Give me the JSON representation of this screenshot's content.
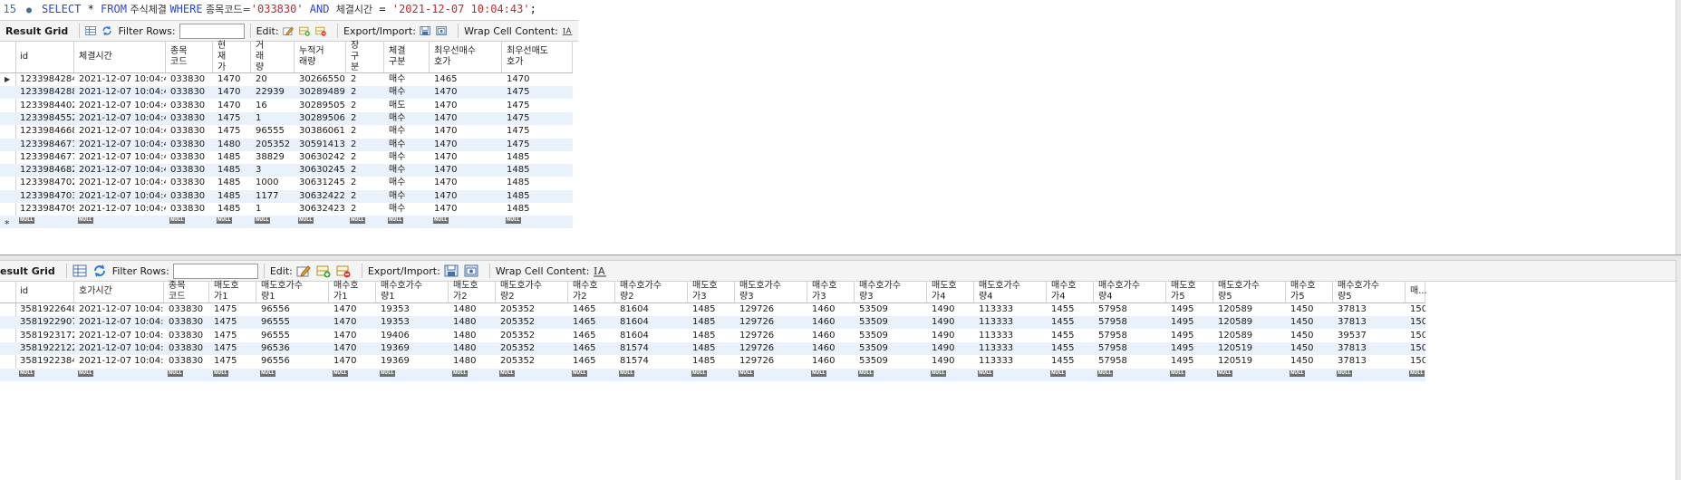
{
  "sql": {
    "line_number": "15",
    "marker": "●",
    "parts": [
      {
        "t": "SELECT",
        "c": "kw"
      },
      {
        "t": " * ",
        "c": ""
      },
      {
        "t": "FROM",
        "c": "kw"
      },
      {
        "t": " 주식체결 ",
        "c": "ko"
      },
      {
        "t": "WHERE",
        "c": "kw"
      },
      {
        "t": " 종목코드=",
        "c": "ko"
      },
      {
        "t": "'033830'",
        "c": "str"
      },
      {
        "t": " AND ",
        "c": "kw"
      },
      {
        "t": "체결시간",
        "c": "ko"
      },
      {
        "t": " = ",
        "c": ""
      },
      {
        "t": "'2021-12-07 10:04:43'",
        "c": "str"
      },
      {
        "t": ";",
        "c": ""
      }
    ]
  },
  "toolbar1": {
    "title": "Result Grid",
    "filter_label": "Filter Rows:",
    "edit_label": "Edit:",
    "export_label": "Export/Import:",
    "wrap_label": "Wrap Cell Content:"
  },
  "toolbar2": {
    "title": "esult Grid",
    "filter_label": "Filter Rows:",
    "edit_label": "Edit:",
    "export_label": "Export/Import:",
    "wrap_label": "Wrap Cell Content:"
  },
  "null_text": "NULL",
  "new_row_marker": "*",
  "current_row_marker": "▶",
  "grid1": {
    "columns": [
      "id",
      "체결시간",
      "종목\n코드",
      "현\n재\n가",
      "거\n래\n량",
      "누적거\n래량",
      "장\n구\n분",
      "체결\n구분",
      "최우선매수\n호가",
      "최우선매도\n호가"
    ],
    "rows": [
      [
        "1233984284",
        "2021-12-07 10:04:43",
        "033830",
        "1470",
        "20",
        "30266550",
        "2",
        "매수",
        "1465",
        "1470"
      ],
      [
        "1233984288",
        "2021-12-07 10:04:43",
        "033830",
        "1470",
        "22939",
        "30289489",
        "2",
        "매수",
        "1470",
        "1475"
      ],
      [
        "1233984402",
        "2021-12-07 10:04:43",
        "033830",
        "1470",
        "16",
        "30289505",
        "2",
        "매도",
        "1470",
        "1475"
      ],
      [
        "1233984552",
        "2021-12-07 10:04:43",
        "033830",
        "1475",
        "1",
        "30289506",
        "2",
        "매수",
        "1470",
        "1475"
      ],
      [
        "1233984668",
        "2021-12-07 10:04:43",
        "033830",
        "1475",
        "96555",
        "30386061",
        "2",
        "매수",
        "1470",
        "1475"
      ],
      [
        "1233984671",
        "2021-12-07 10:04:43",
        "033830",
        "1480",
        "205352",
        "30591413",
        "2",
        "매수",
        "1470",
        "1475"
      ],
      [
        "1233984677",
        "2021-12-07 10:04:43",
        "033830",
        "1485",
        "38829",
        "30630242",
        "2",
        "매수",
        "1470",
        "1485"
      ],
      [
        "1233984682",
        "2021-12-07 10:04:43",
        "033830",
        "1485",
        "3",
        "30630245",
        "2",
        "매수",
        "1470",
        "1485"
      ],
      [
        "1233984702",
        "2021-12-07 10:04:43",
        "033830",
        "1485",
        "1000",
        "30631245",
        "2",
        "매수",
        "1470",
        "1485"
      ],
      [
        "1233984703",
        "2021-12-07 10:04:43",
        "033830",
        "1485",
        "1177",
        "30632422",
        "2",
        "매수",
        "1470",
        "1485"
      ],
      [
        "1233984709",
        "2021-12-07 10:04:43",
        "033830",
        "1485",
        "1",
        "30632423",
        "2",
        "매수",
        "1470",
        "1485"
      ]
    ]
  },
  "grid2": {
    "columns": [
      "id",
      "호가시간",
      "종목\n코드",
      "매도호\n가1",
      "매도호가수\n량1",
      "매수호\n가1",
      "매수호가수\n량1",
      "매도호\n가2",
      "매도호가수\n량2",
      "매수호\n가2",
      "매수호가수\n량2",
      "매도호\n가3",
      "매도호가수\n량3",
      "매수호\n가3",
      "매수호가수\n량3",
      "매도호\n가4",
      "매도호가수\n량4",
      "매수호\n가4",
      "매수호가수\n량4",
      "매도호\n가5",
      "매도호가수\n량5",
      "매수호\n가5",
      "매수호가수\n량5",
      "매..."
    ],
    "rows": [
      [
        "3581922648",
        "2021-12-07 10:04:43",
        "033830",
        "1475",
        "96556",
        "1470",
        "19353",
        "1480",
        "205352",
        "1465",
        "81604",
        "1485",
        "129726",
        "1460",
        "53509",
        "1490",
        "113333",
        "1455",
        "57958",
        "1495",
        "120589",
        "1450",
        "37813",
        "150"
      ],
      [
        "3581922907",
        "2021-12-07 10:04:43",
        "033830",
        "1475",
        "96555",
        "1470",
        "19353",
        "1480",
        "205352",
        "1465",
        "81604",
        "1485",
        "129726",
        "1460",
        "53509",
        "1490",
        "113333",
        "1455",
        "57958",
        "1495",
        "120589",
        "1450",
        "37813",
        "150"
      ],
      [
        "3581923172",
        "2021-12-07 10:04:43",
        "033830",
        "1475",
        "96555",
        "1470",
        "19406",
        "1480",
        "205352",
        "1465",
        "81604",
        "1485",
        "129726",
        "1460",
        "53509",
        "1490",
        "113333",
        "1455",
        "57958",
        "1495",
        "120589",
        "1450",
        "39537",
        "150"
      ],
      [
        "3581922122",
        "2021-12-07 10:04:43",
        "033830",
        "1475",
        "96536",
        "1470",
        "19369",
        "1480",
        "205352",
        "1465",
        "81574",
        "1485",
        "129726",
        "1460",
        "53509",
        "1490",
        "113333",
        "1455",
        "57958",
        "1495",
        "120519",
        "1450",
        "37813",
        "150"
      ],
      [
        "3581922384",
        "2021-12-07 10:04:43",
        "033830",
        "1475",
        "96556",
        "1470",
        "19369",
        "1480",
        "205352",
        "1465",
        "81574",
        "1485",
        "129726",
        "1460",
        "53509",
        "1490",
        "113333",
        "1455",
        "57958",
        "1495",
        "120519",
        "1450",
        "37813",
        "150"
      ]
    ]
  },
  "colors": {
    "keyword": "#2b45d8",
    "string": "#c0292b",
    "row_alt": "#e9f1fb",
    "null_badge": "#6f6f6f"
  }
}
